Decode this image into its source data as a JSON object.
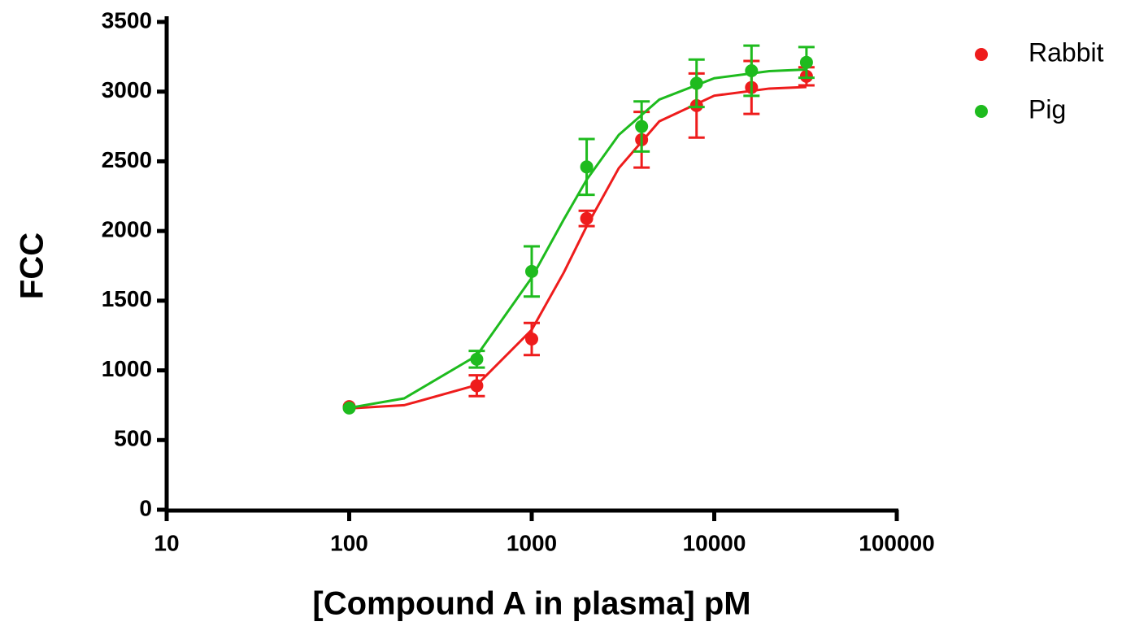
{
  "chart_data": {
    "type": "scatter",
    "xlabel": "[Compound A in plasma] pM",
    "ylabel": "FCC",
    "xscale": "log",
    "xlim": [
      10,
      100000
    ],
    "xticks": [
      10,
      100,
      1000,
      10000,
      100000
    ],
    "ylim": [
      0,
      3500
    ],
    "yticks": [
      0,
      500,
      1000,
      1500,
      2000,
      2500,
      3000,
      3500
    ],
    "legend": "upper right",
    "x": [
      100,
      500,
      1000,
      2000,
      4000,
      8000,
      16000,
      32000
    ],
    "fit_x": [
      100,
      200,
      500,
      1000,
      1500,
      2000,
      3000,
      5000,
      10000,
      20000,
      32000
    ],
    "series": [
      {
        "name": "Rabbit",
        "color": "#ee1c1c",
        "values": [
          740,
          890,
          1225,
          2090,
          2655,
          2900,
          3030,
          3110
        ],
        "errors": [
          0,
          75,
          115,
          55,
          200,
          230,
          190,
          65
        ],
        "fit_values": [
          727,
          750,
          895,
          1291,
          1703,
          2034,
          2451,
          2787,
          2971,
          3022,
          3033
        ]
      },
      {
        "name": "Pig",
        "color": "#1ebb1e",
        "values": [
          730,
          1080,
          1710,
          2460,
          2750,
          3060,
          3150,
          3210
        ],
        "errors": [
          0,
          60,
          180,
          200,
          180,
          170,
          180,
          110
        ],
        "fit_values": [
          731,
          799,
          1106,
          1665,
          2084,
          2368,
          2690,
          2943,
          3096,
          3147,
          3159
        ]
      }
    ]
  }
}
